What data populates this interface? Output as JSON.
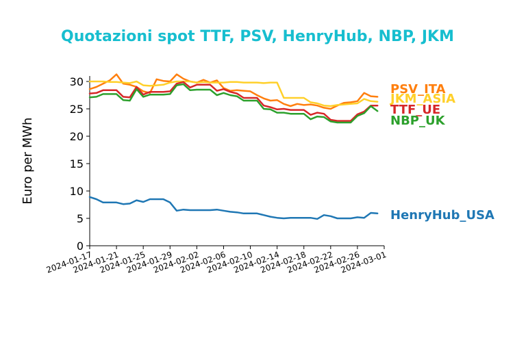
{
  "colors": {
    "title": "#17becf",
    "PSV_ITA": "#ff7f0e",
    "JKM_ASIA": "#ffd02a",
    "TTF_UE": "#d62728",
    "NBP_UK": "#2ca02c",
    "HenryHub_USA": "#1f77b4"
  },
  "chart_data": {
    "type": "line",
    "title": "Quotazioni spot TTF, PSV, HenryHub, NBP, JKM",
    "xlabel": "",
    "ylabel": "Euro per MWh",
    "ylim": [
      0,
      31
    ],
    "yticks": [
      "0",
      "5",
      "10",
      "15",
      "20",
      "25",
      "30"
    ],
    "xlim": [
      "2024-01-17",
      "2024-03-01"
    ],
    "xticks": [
      "2024-01-17",
      "2024-01-21",
      "2024-01-25",
      "2024-01-29",
      "2024-02-02",
      "2024-02-06",
      "2024-02-10",
      "2024-02-14",
      "2024-02-18",
      "2024-02-22",
      "2024-02-26",
      "2024-03-01"
    ],
    "grid": false,
    "legend": "labels at right end of each line",
    "series": [
      {
        "name": "PSV_ITA",
        "x": [
          "2024-01-17",
          "2024-01-18",
          "2024-01-19",
          "2024-01-20",
          "2024-01-21",
          "2024-01-22",
          "2024-01-23",
          "2024-01-24",
          "2024-01-25",
          "2024-01-26",
          "2024-01-27",
          "2024-01-28",
          "2024-01-29",
          "2024-01-30",
          "2024-01-31",
          "2024-02-01",
          "2024-02-02",
          "2024-02-03",
          "2024-02-04",
          "2024-02-05",
          "2024-02-06",
          "2024-02-07",
          "2024-02-08",
          "2024-02-09",
          "2024-02-10",
          "2024-02-11",
          "2024-02-12",
          "2024-02-13",
          "2024-02-14",
          "2024-02-15",
          "2024-02-16",
          "2024-02-17",
          "2024-02-18",
          "2024-02-19",
          "2024-02-20",
          "2024-02-21",
          "2024-02-22",
          "2024-02-23",
          "2024-02-24",
          "2024-02-25",
          "2024-02-26",
          "2024-02-27",
          "2024-02-28",
          "2024-02-29"
        ],
        "values": [
          28.6,
          29.0,
          29.6,
          30.2,
          31.3,
          29.6,
          29.4,
          29.0,
          28.2,
          27.9,
          30.4,
          30.1,
          30.0,
          31.3,
          30.5,
          30.0,
          29.8,
          30.3,
          29.8,
          30.2,
          28.8,
          28.3,
          28.4,
          28.3,
          28.2,
          27.5,
          26.9,
          26.5,
          26.6,
          25.9,
          25.5,
          25.9,
          25.7,
          25.8,
          25.6,
          25.2,
          25.0,
          25.6,
          26.1,
          26.2,
          26.4,
          27.9,
          27.3,
          27.2
        ]
      },
      {
        "name": "JKM_ASIA",
        "x": [
          "2024-01-17",
          "2024-01-18",
          "2024-01-19",
          "2024-01-20",
          "2024-01-21",
          "2024-01-22",
          "2024-01-23",
          "2024-01-24",
          "2024-01-25",
          "2024-01-26",
          "2024-01-27",
          "2024-01-28",
          "2024-01-29",
          "2024-01-30",
          "2024-01-31",
          "2024-02-01",
          "2024-02-02",
          "2024-02-03",
          "2024-02-04",
          "2024-02-05",
          "2024-02-06",
          "2024-02-07",
          "2024-02-08",
          "2024-02-09",
          "2024-02-10",
          "2024-02-11",
          "2024-02-12",
          "2024-02-13",
          "2024-02-14",
          "2024-02-15",
          "2024-02-16",
          "2024-02-17",
          "2024-02-18",
          "2024-02-19",
          "2024-02-20",
          "2024-02-21",
          "2024-02-22",
          "2024-02-23",
          "2024-02-24",
          "2024-02-25",
          "2024-02-26",
          "2024-02-27",
          "2024-02-28",
          "2024-02-29"
        ],
        "values": [
          30.0,
          30.0,
          30.0,
          29.9,
          29.9,
          29.8,
          29.7,
          30.0,
          29.3,
          29.2,
          29.3,
          29.4,
          29.8,
          30.0,
          30.0,
          30.0,
          29.8,
          29.9,
          29.8,
          29.8,
          29.8,
          29.9,
          29.9,
          29.8,
          29.8,
          29.8,
          29.7,
          29.8,
          29.8,
          27.0,
          27.0,
          27.0,
          27.0,
          26.2,
          26.0,
          25.6,
          25.5,
          25.7,
          25.8,
          25.9,
          26.0,
          26.8,
          26.4,
          26.3
        ]
      },
      {
        "name": "TTF_UE",
        "x": [
          "2024-01-17",
          "2024-01-18",
          "2024-01-19",
          "2024-01-20",
          "2024-01-21",
          "2024-01-22",
          "2024-01-23",
          "2024-01-24",
          "2024-01-25",
          "2024-01-26",
          "2024-01-27",
          "2024-01-28",
          "2024-01-29",
          "2024-01-30",
          "2024-01-31",
          "2024-02-01",
          "2024-02-02",
          "2024-02-03",
          "2024-02-04",
          "2024-02-05",
          "2024-02-06",
          "2024-02-07",
          "2024-02-08",
          "2024-02-09",
          "2024-02-10",
          "2024-02-11",
          "2024-02-12",
          "2024-02-13",
          "2024-02-14",
          "2024-02-15",
          "2024-02-16",
          "2024-02-17",
          "2024-02-18",
          "2024-02-19",
          "2024-02-20",
          "2024-02-21",
          "2024-02-22",
          "2024-02-23",
          "2024-02-24",
          "2024-02-25",
          "2024-02-26",
          "2024-02-27",
          "2024-02-28",
          "2024-02-29"
        ],
        "values": [
          27.8,
          27.9,
          28.4,
          28.4,
          28.4,
          27.2,
          27.1,
          29.0,
          27.6,
          28.1,
          28.1,
          28.1,
          28.2,
          29.6,
          29.9,
          28.9,
          29.4,
          29.4,
          29.4,
          28.3,
          28.6,
          28.1,
          27.8,
          27.0,
          27.0,
          27.0,
          25.6,
          25.3,
          24.9,
          25.0,
          24.8,
          24.8,
          24.8,
          23.9,
          24.3,
          24.1,
          23.0,
          22.8,
          22.8,
          22.8,
          24.0,
          24.5,
          25.6,
          25.6
        ]
      },
      {
        "name": "NBP_UK",
        "x": [
          "2024-01-17",
          "2024-01-18",
          "2024-01-19",
          "2024-01-20",
          "2024-01-21",
          "2024-01-22",
          "2024-01-23",
          "2024-01-24",
          "2024-01-25",
          "2024-01-26",
          "2024-01-27",
          "2024-01-28",
          "2024-01-29",
          "2024-01-30",
          "2024-01-31",
          "2024-02-01",
          "2024-02-02",
          "2024-02-03",
          "2024-02-04",
          "2024-02-05",
          "2024-02-06",
          "2024-02-07",
          "2024-02-08",
          "2024-02-09",
          "2024-02-10",
          "2024-02-11",
          "2024-02-12",
          "2024-02-13",
          "2024-02-14",
          "2024-02-15",
          "2024-02-16",
          "2024-02-17",
          "2024-02-18",
          "2024-02-19",
          "2024-02-20",
          "2024-02-21",
          "2024-02-22",
          "2024-02-23",
          "2024-02-24",
          "2024-02-25",
          "2024-02-26",
          "2024-02-27",
          "2024-02-28",
          "2024-02-29"
        ],
        "values": [
          27.1,
          27.2,
          27.7,
          27.7,
          27.7,
          26.6,
          26.5,
          28.6,
          27.2,
          27.6,
          27.6,
          27.6,
          27.7,
          29.3,
          29.5,
          28.4,
          28.5,
          28.5,
          28.5,
          27.5,
          27.9,
          27.5,
          27.3,
          26.5,
          26.5,
          26.5,
          25.0,
          24.9,
          24.3,
          24.3,
          24.1,
          24.1,
          24.1,
          23.1,
          23.6,
          23.5,
          22.7,
          22.5,
          22.5,
          22.5,
          23.7,
          24.2,
          25.5,
          24.6
        ]
      },
      {
        "name": "HenryHub_USA",
        "x": [
          "2024-01-17",
          "2024-01-18",
          "2024-01-19",
          "2024-01-20",
          "2024-01-21",
          "2024-01-22",
          "2024-01-23",
          "2024-01-24",
          "2024-01-25",
          "2024-01-26",
          "2024-01-27",
          "2024-01-28",
          "2024-01-29",
          "2024-01-30",
          "2024-01-31",
          "2024-02-01",
          "2024-02-02",
          "2024-02-03",
          "2024-02-04",
          "2024-02-05",
          "2024-02-06",
          "2024-02-07",
          "2024-02-08",
          "2024-02-09",
          "2024-02-10",
          "2024-02-11",
          "2024-02-12",
          "2024-02-13",
          "2024-02-14",
          "2024-02-15",
          "2024-02-16",
          "2024-02-17",
          "2024-02-18",
          "2024-02-19",
          "2024-02-20",
          "2024-02-21",
          "2024-02-22",
          "2024-02-23",
          "2024-02-24",
          "2024-02-25",
          "2024-02-26",
          "2024-02-27",
          "2024-02-28",
          "2024-02-29"
        ],
        "values": [
          8.9,
          8.5,
          7.9,
          7.9,
          7.9,
          7.6,
          7.7,
          8.3,
          8.0,
          8.5,
          8.5,
          8.5,
          7.9,
          6.4,
          6.6,
          6.5,
          6.5,
          6.5,
          6.5,
          6.6,
          6.4,
          6.2,
          6.1,
          5.9,
          5.9,
          5.9,
          5.6,
          5.3,
          5.1,
          5.0,
          5.1,
          5.1,
          5.1,
          5.1,
          4.9,
          5.6,
          5.4,
          5.0,
          5.0,
          5.0,
          5.2,
          5.1,
          6.0,
          5.9
        ]
      }
    ],
    "series_labels": [
      "PSV_ITA",
      "JKM_ASIA",
      "TTF_UE",
      "NBP_UK",
      "HenryHub_USA"
    ]
  }
}
